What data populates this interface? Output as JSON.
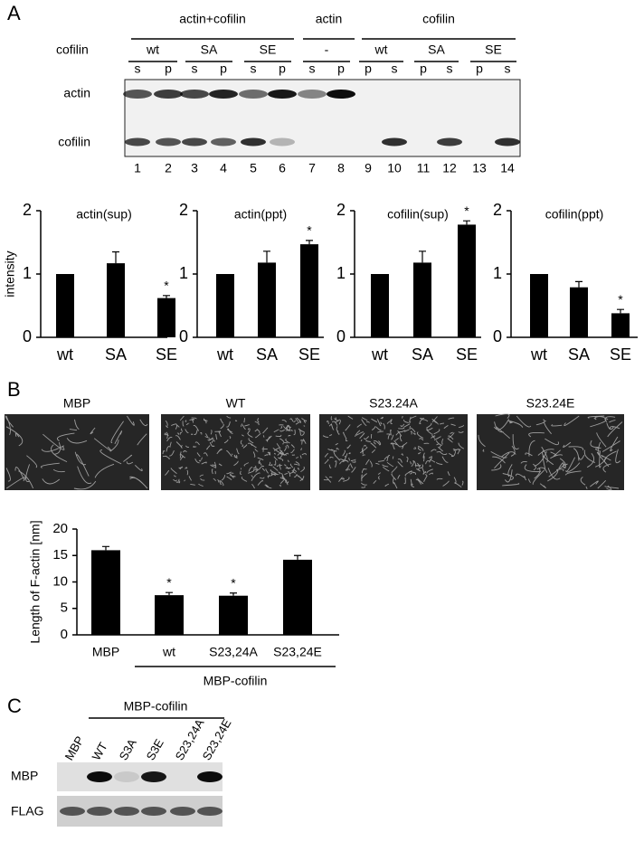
{
  "panels": {
    "a": "A",
    "b": "B",
    "c": "C"
  },
  "gel": {
    "groups": [
      "actin+cofilin",
      "actin",
      "cofilin"
    ],
    "row_header": "cofilin",
    "conditions": [
      "wt",
      "SA",
      "SE",
      "-",
      "wt",
      "SA",
      "SE"
    ],
    "lanes": [
      "s",
      "p",
      "s",
      "p",
      "s",
      "p",
      "s",
      "p",
      "p",
      "s",
      "p",
      "s",
      "p",
      "s"
    ],
    "bands": [
      "actin",
      "cofilin"
    ],
    "lane_numbers": [
      1,
      2,
      3,
      4,
      5,
      6,
      7,
      8,
      9,
      10,
      11,
      12,
      13,
      14
    ]
  },
  "images": {
    "labels": [
      "MBP",
      "WT",
      "S23.24A",
      "S23.24E"
    ]
  },
  "blot": {
    "header": "MBP-cofilin",
    "lanes": [
      "MBP",
      "WT",
      "S3A",
      "S3E",
      "S23,24A",
      "S23,24E"
    ],
    "rows": [
      "MBP",
      "FLAG"
    ]
  },
  "chart_data": [
    {
      "type": "bar",
      "title": "actin(sup)",
      "y_label": "intensity",
      "categories": [
        "wt",
        "SA",
        "SE"
      ],
      "values": [
        1,
        1.17,
        0.62
      ],
      "errors": [
        null,
        0.18,
        0.04
      ],
      "annotations": [
        {
          "index": 2,
          "text": "*"
        }
      ],
      "ylim": [
        0,
        2
      ],
      "yticks": [
        0,
        1,
        2
      ],
      "color": "#000000"
    },
    {
      "type": "bar",
      "title": "actin(ppt)",
      "categories": [
        "wt",
        "SA",
        "SE"
      ],
      "values": [
        1,
        1.18,
        1.47
      ],
      "errors": [
        null,
        0.18,
        0.06
      ],
      "annotations": [
        {
          "index": 2,
          "text": "*"
        }
      ],
      "ylim": [
        0,
        2
      ],
      "yticks": [
        0,
        1,
        2
      ],
      "color": "#000000"
    },
    {
      "type": "bar",
      "title": "cofilin(sup)",
      "categories": [
        "wt",
        "SA",
        "SE"
      ],
      "values": [
        1,
        1.18,
        1.78
      ],
      "errors": [
        null,
        0.18,
        0.06
      ],
      "annotations": [
        {
          "index": 2,
          "text": "*"
        }
      ],
      "ylim": [
        0,
        2
      ],
      "yticks": [
        0,
        1,
        2
      ],
      "color": "#000000"
    },
    {
      "type": "bar",
      "title": "cofilin(ppt)",
      "categories": [
        "wt",
        "SA",
        "SE"
      ],
      "values": [
        1,
        0.79,
        0.38
      ],
      "errors": [
        null,
        0.09,
        0.06
      ],
      "annotations": [
        {
          "index": 2,
          "text": "*"
        }
      ],
      "ylim": [
        0,
        2
      ],
      "yticks": [
        0,
        1,
        2
      ],
      "color": "#000000"
    },
    {
      "type": "bar",
      "y_label": "Length of F-actin [nm]",
      "categories": [
        "MBP",
        "wt",
        "S23,24A",
        "S23,24E"
      ],
      "values": [
        16,
        7.5,
        7.4,
        14.2
      ],
      "errors": [
        0.7,
        0.5,
        0.5,
        0.8
      ],
      "annotations": [
        {
          "index": 1,
          "text": "*"
        },
        {
          "index": 2,
          "text": "*"
        }
      ],
      "group_label": {
        "text": "MBP-cofilin",
        "from": 1,
        "to": 3
      },
      "ylim": [
        0,
        20
      ],
      "yticks": [
        0,
        5,
        10,
        15,
        20
      ],
      "color": "#000000"
    }
  ]
}
